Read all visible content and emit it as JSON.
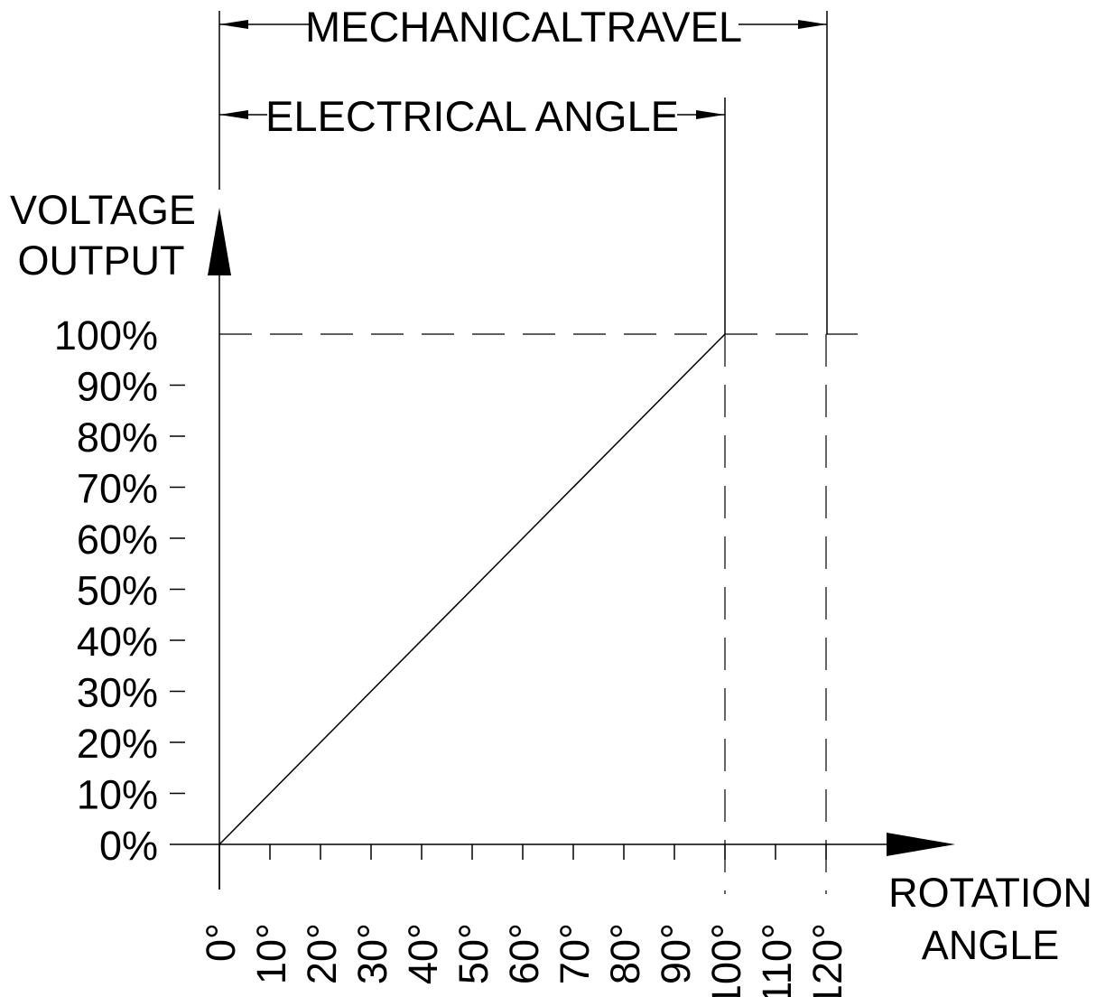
{
  "chart_data": {
    "type": "line",
    "dimensions": {
      "mechanical_travel": "MECHANICALTRAVEL",
      "electrical_angle": "ELECTRICAL ANGLE"
    },
    "ylabel": [
      "VOLTAGE",
      "OUTPUT"
    ],
    "xlabel": [
      "ROTATION",
      "ANGLE"
    ],
    "y_ticks": [
      "0%",
      "10%",
      "20%",
      "30%",
      "40%",
      "50%",
      "60%",
      "70%",
      "80%",
      "90%",
      "100%"
    ],
    "x_ticks": [
      "0°",
      "10°",
      "20°",
      "30°",
      "40°",
      "50°",
      "60°",
      "70°",
      "80°",
      "90°",
      "100°",
      "110°",
      "120°"
    ],
    "xlim": [
      0,
      120
    ],
    "ylim": [
      0,
      100
    ],
    "series": [
      {
        "x": [
          0,
          100
        ],
        "y": [
          0,
          100
        ]
      }
    ],
    "reference_lines": {
      "y_dashed": 100,
      "x_dashed": [
        100,
        120
      ]
    }
  }
}
